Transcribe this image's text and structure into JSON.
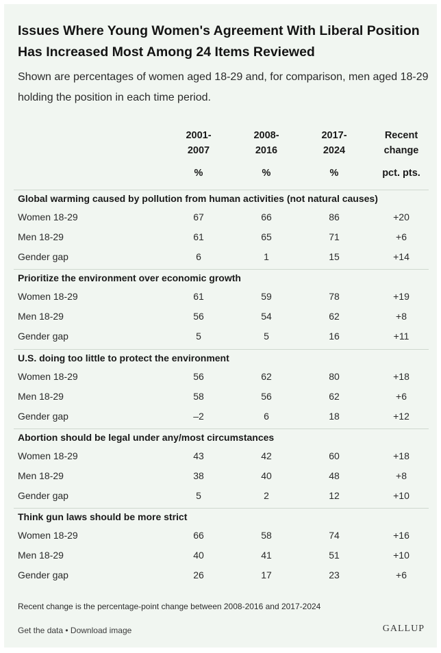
{
  "title": "Issues Where Young Women's Agreement With Liberal Position Has Increased Most Among 24 Items Reviewed",
  "subtitle": "Shown are percentages of women aged 18-29 and, for comparison, men aged 18-29 holding the position in each time period.",
  "chart_data": {
    "type": "table",
    "columns": [
      {
        "line1": "2001-",
        "line2": "2007",
        "unit": "%"
      },
      {
        "line1": "2008-",
        "line2": "2016",
        "unit": "%"
      },
      {
        "line1": "2017-",
        "line2": "2024",
        "unit": "%"
      },
      {
        "line1": "Recent",
        "line2": "change",
        "unit": "pct. pts."
      }
    ],
    "sections": [
      {
        "title": "Global warming caused by pollution from human activities (not natural causes)",
        "rows": [
          {
            "label": "Women 18-29",
            "values": [
              "67",
              "66",
              "86",
              "+20"
            ]
          },
          {
            "label": "Men 18-29",
            "values": [
              "61",
              "65",
              "71",
              "+6"
            ]
          },
          {
            "label": "Gender gap",
            "values": [
              "6",
              "1",
              "15",
              "+14"
            ]
          }
        ]
      },
      {
        "title": "Prioritize the environment over economic growth",
        "rows": [
          {
            "label": "Women 18-29",
            "values": [
              "61",
              "59",
              "78",
              "+19"
            ]
          },
          {
            "label": "Men 18-29",
            "values": [
              "56",
              "54",
              "62",
              "+8"
            ]
          },
          {
            "label": "Gender gap",
            "values": [
              "5",
              "5",
              "16",
              "+11"
            ]
          }
        ]
      },
      {
        "title": "U.S. doing too little to protect the environment",
        "rows": [
          {
            "label": "Women 18-29",
            "values": [
              "56",
              "62",
              "80",
              "+18"
            ]
          },
          {
            "label": "Men 18-29",
            "values": [
              "58",
              "56",
              "62",
              "+6"
            ]
          },
          {
            "label": "Gender gap",
            "values": [
              "–2",
              "6",
              "18",
              "+12"
            ]
          }
        ]
      },
      {
        "title": "Abortion should be legal under any/most circumstances",
        "rows": [
          {
            "label": "Women 18-29",
            "values": [
              "43",
              "42",
              "60",
              "+18"
            ]
          },
          {
            "label": "Men 18-29",
            "values": [
              "38",
              "40",
              "48",
              "+8"
            ]
          },
          {
            "label": "Gender gap",
            "values": [
              "5",
              "2",
              "12",
              "+10"
            ]
          }
        ]
      },
      {
        "title": "Think gun laws should be more strict",
        "rows": [
          {
            "label": "Women 18-29",
            "values": [
              "66",
              "58",
              "74",
              "+16"
            ]
          },
          {
            "label": "Men 18-29",
            "values": [
              "40",
              "41",
              "51",
              "+10"
            ]
          },
          {
            "label": "Gender gap",
            "values": [
              "26",
              "17",
              "23",
              "+6"
            ]
          }
        ]
      }
    ]
  },
  "footnote": "Recent change is the percentage-point change between 2008-2016 and 2017-2024",
  "links": {
    "get_data": "Get the data",
    "separator": " • ",
    "download": "Download image"
  },
  "brand": "GALLUP"
}
